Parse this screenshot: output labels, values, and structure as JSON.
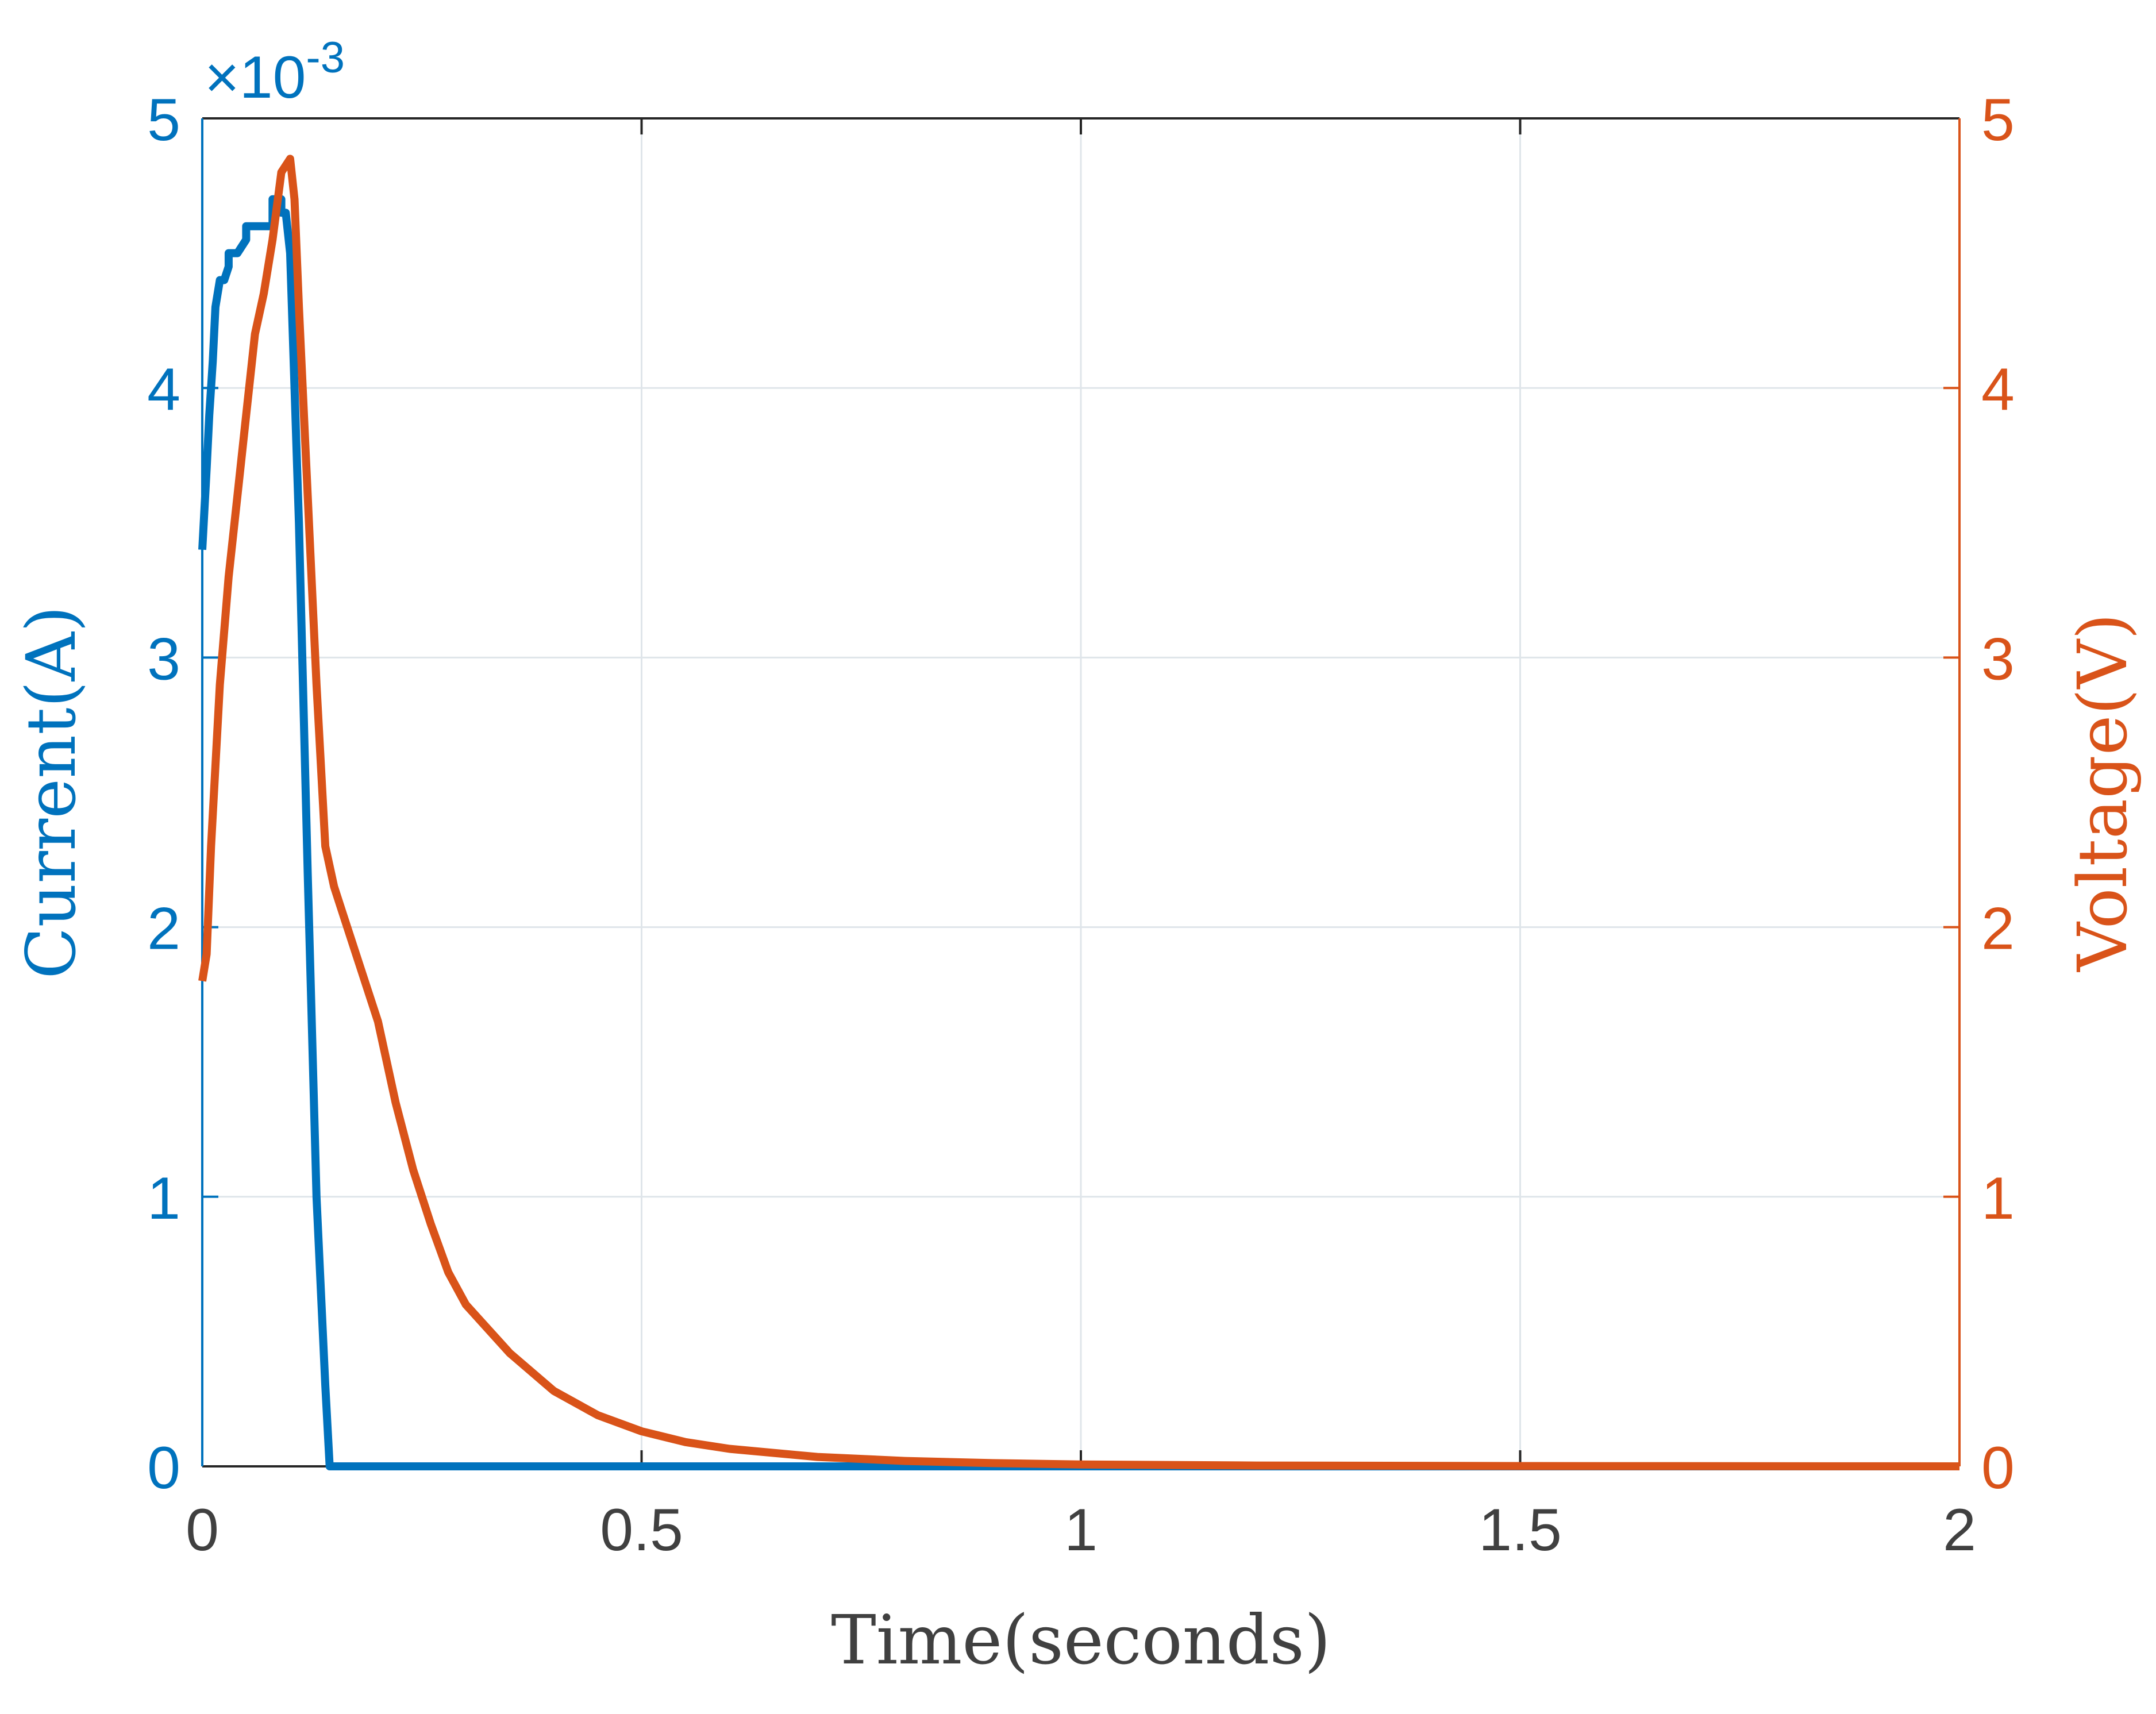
{
  "chart_data": {
    "type": "line",
    "title": "",
    "xlabel": "Time(seconds)",
    "xlim": [
      0,
      2
    ],
    "xticks": [
      "0",
      "0.5",
      "1",
      "1.5",
      "2"
    ],
    "grid": true,
    "legend": "none",
    "y_left": {
      "label": "Current(A)",
      "ylim": [
        0,
        5
      ],
      "ticks": [
        "0",
        "1",
        "2",
        "3",
        "4",
        "5"
      ],
      "exponent": "×10",
      "exponent_power": "-3",
      "color": "#0072BD"
    },
    "y_right": {
      "label": "Voltage(V)",
      "ylim": [
        0,
        5
      ],
      "ticks": [
        "0",
        "1",
        "2",
        "3",
        "4",
        "5"
      ],
      "color": "#D95319"
    },
    "series": [
      {
        "axis": "left",
        "color": "#0072BD",
        "x": [
          0,
          0.005,
          0.008,
          0.012,
          0.015,
          0.02,
          0.025,
          0.03,
          0.03,
          0.04,
          0.04,
          0.05,
          0.05,
          0.06,
          0.075,
          0.08,
          0.08,
          0.09,
          0.09,
          0.095,
          0.1,
          0.11,
          0.12,
          0.13,
          0.14,
          0.145,
          0.16,
          0.5,
          1.0,
          1.5,
          2.0
        ],
        "values": [
          3.4,
          3.7,
          3.9,
          4.1,
          4.3,
          4.4,
          4.4,
          4.45,
          4.5,
          4.5,
          4.5,
          4.55,
          4.6,
          4.6,
          4.6,
          4.6,
          4.7,
          4.7,
          4.65,
          4.65,
          4.5,
          3.5,
          2.2,
          1.0,
          0.3,
          0.0,
          0.0,
          0.0,
          0.0,
          0.0,
          0.0
        ]
      },
      {
        "axis": "right",
        "color": "#D95319",
        "x": [
          0,
          0.005,
          0.01,
          0.02,
          0.03,
          0.04,
          0.05,
          0.06,
          0.07,
          0.08,
          0.09,
          0.1,
          0.105,
          0.11,
          0.12,
          0.13,
          0.14,
          0.15,
          0.16,
          0.17,
          0.18,
          0.19,
          0.2,
          0.22,
          0.24,
          0.26,
          0.28,
          0.3,
          0.35,
          0.4,
          0.45,
          0.5,
          0.55,
          0.6,
          0.7,
          0.8,
          0.9,
          1.0,
          1.2,
          1.5,
          2.0
        ],
        "values": [
          1.8,
          1.9,
          2.3,
          2.9,
          3.3,
          3.6,
          3.9,
          4.2,
          4.35,
          4.55,
          4.8,
          4.85,
          4.7,
          4.3,
          3.6,
          2.9,
          2.3,
          2.15,
          2.05,
          1.95,
          1.85,
          1.75,
          1.65,
          1.35,
          1.1,
          0.9,
          0.72,
          0.6,
          0.42,
          0.28,
          0.19,
          0.13,
          0.09,
          0.065,
          0.035,
          0.02,
          0.012,
          0.007,
          0.003,
          0.001,
          0.0
        ]
      }
    ]
  }
}
